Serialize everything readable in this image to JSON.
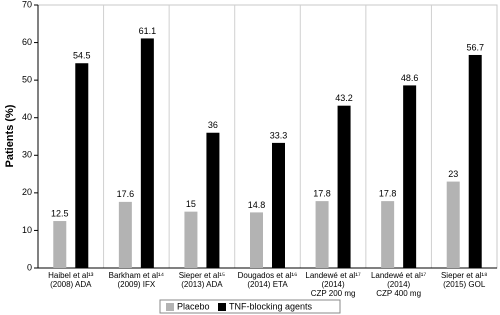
{
  "chart_data": {
    "type": "bar",
    "y_label": "Patients (%)",
    "categories": [
      [
        "Haibel et al¹³",
        "(2008) ADA"
      ],
      [
        "Barkham et al¹⁴",
        "(2009) IFX"
      ],
      [
        "Sieper et al¹⁵",
        "(2013) ADA"
      ],
      [
        "Dougados et al¹⁶",
        "(2014) ETA"
      ],
      [
        "Landewé et al¹⁷",
        "(2014)",
        "CZP 200 mg"
      ],
      [
        "Landewé et al¹⁷",
        "(2014)",
        "CZP 400 mg"
      ],
      [
        "Sieper et al¹⁸",
        "(2015) GOL"
      ]
    ],
    "series": [
      {
        "name": "Placebo",
        "color": "#b3b3b3",
        "values": [
          12.5,
          17.6,
          15,
          14.8,
          17.8,
          17.8,
          23
        ]
      },
      {
        "name": "TNF-blocking agents",
        "color": "#000000",
        "values": [
          54.5,
          61.1,
          36,
          33.3,
          43.2,
          48.6,
          56.7
        ]
      }
    ],
    "ylim": [
      0,
      70
    ],
    "yticks": [
      0,
      10,
      20,
      30,
      40,
      50,
      60,
      70
    ],
    "legend": "bottom"
  }
}
